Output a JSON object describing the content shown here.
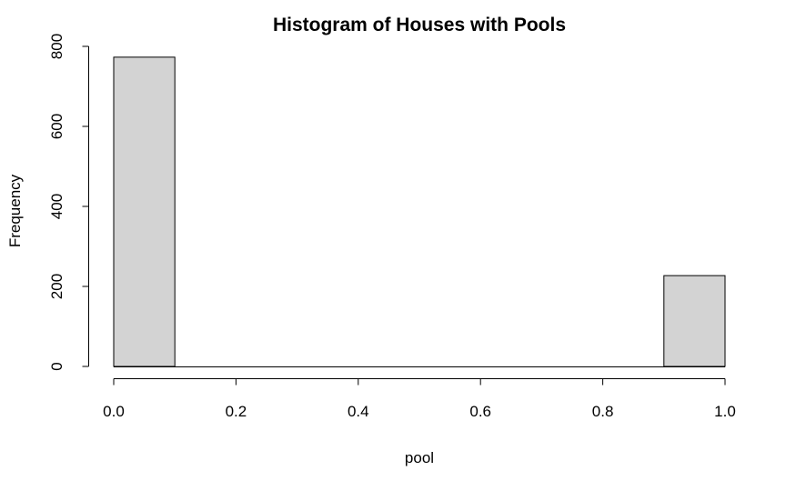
{
  "chart_data": {
    "type": "bar",
    "title": "Histogram of Houses with Pools",
    "xlabel": "pool",
    "ylabel": "Frequency",
    "xlim": [
      0,
      1
    ],
    "ylim": [
      0,
      800
    ],
    "x_ticks": [
      "0.0",
      "0.2",
      "0.4",
      "0.6",
      "0.8",
      "1.0"
    ],
    "y_ticks": [
      "0",
      "200",
      "400",
      "600",
      "800"
    ],
    "bins": [
      {
        "x0": 0.0,
        "x1": 0.1,
        "count": 773
      },
      {
        "x0": 0.1,
        "x1": 0.2,
        "count": 0
      },
      {
        "x0": 0.2,
        "x1": 0.3,
        "count": 0
      },
      {
        "x0": 0.3,
        "x1": 0.4,
        "count": 0
      },
      {
        "x0": 0.4,
        "x1": 0.5,
        "count": 0
      },
      {
        "x0": 0.5,
        "x1": 0.6,
        "count": 0
      },
      {
        "x0": 0.6,
        "x1": 0.7,
        "count": 0
      },
      {
        "x0": 0.7,
        "x1": 0.8,
        "count": 0
      },
      {
        "x0": 0.8,
        "x1": 0.9,
        "count": 0
      },
      {
        "x0": 0.9,
        "x1": 1.0,
        "count": 227
      }
    ],
    "bar_color": "#d3d3d3",
    "grid": false
  }
}
